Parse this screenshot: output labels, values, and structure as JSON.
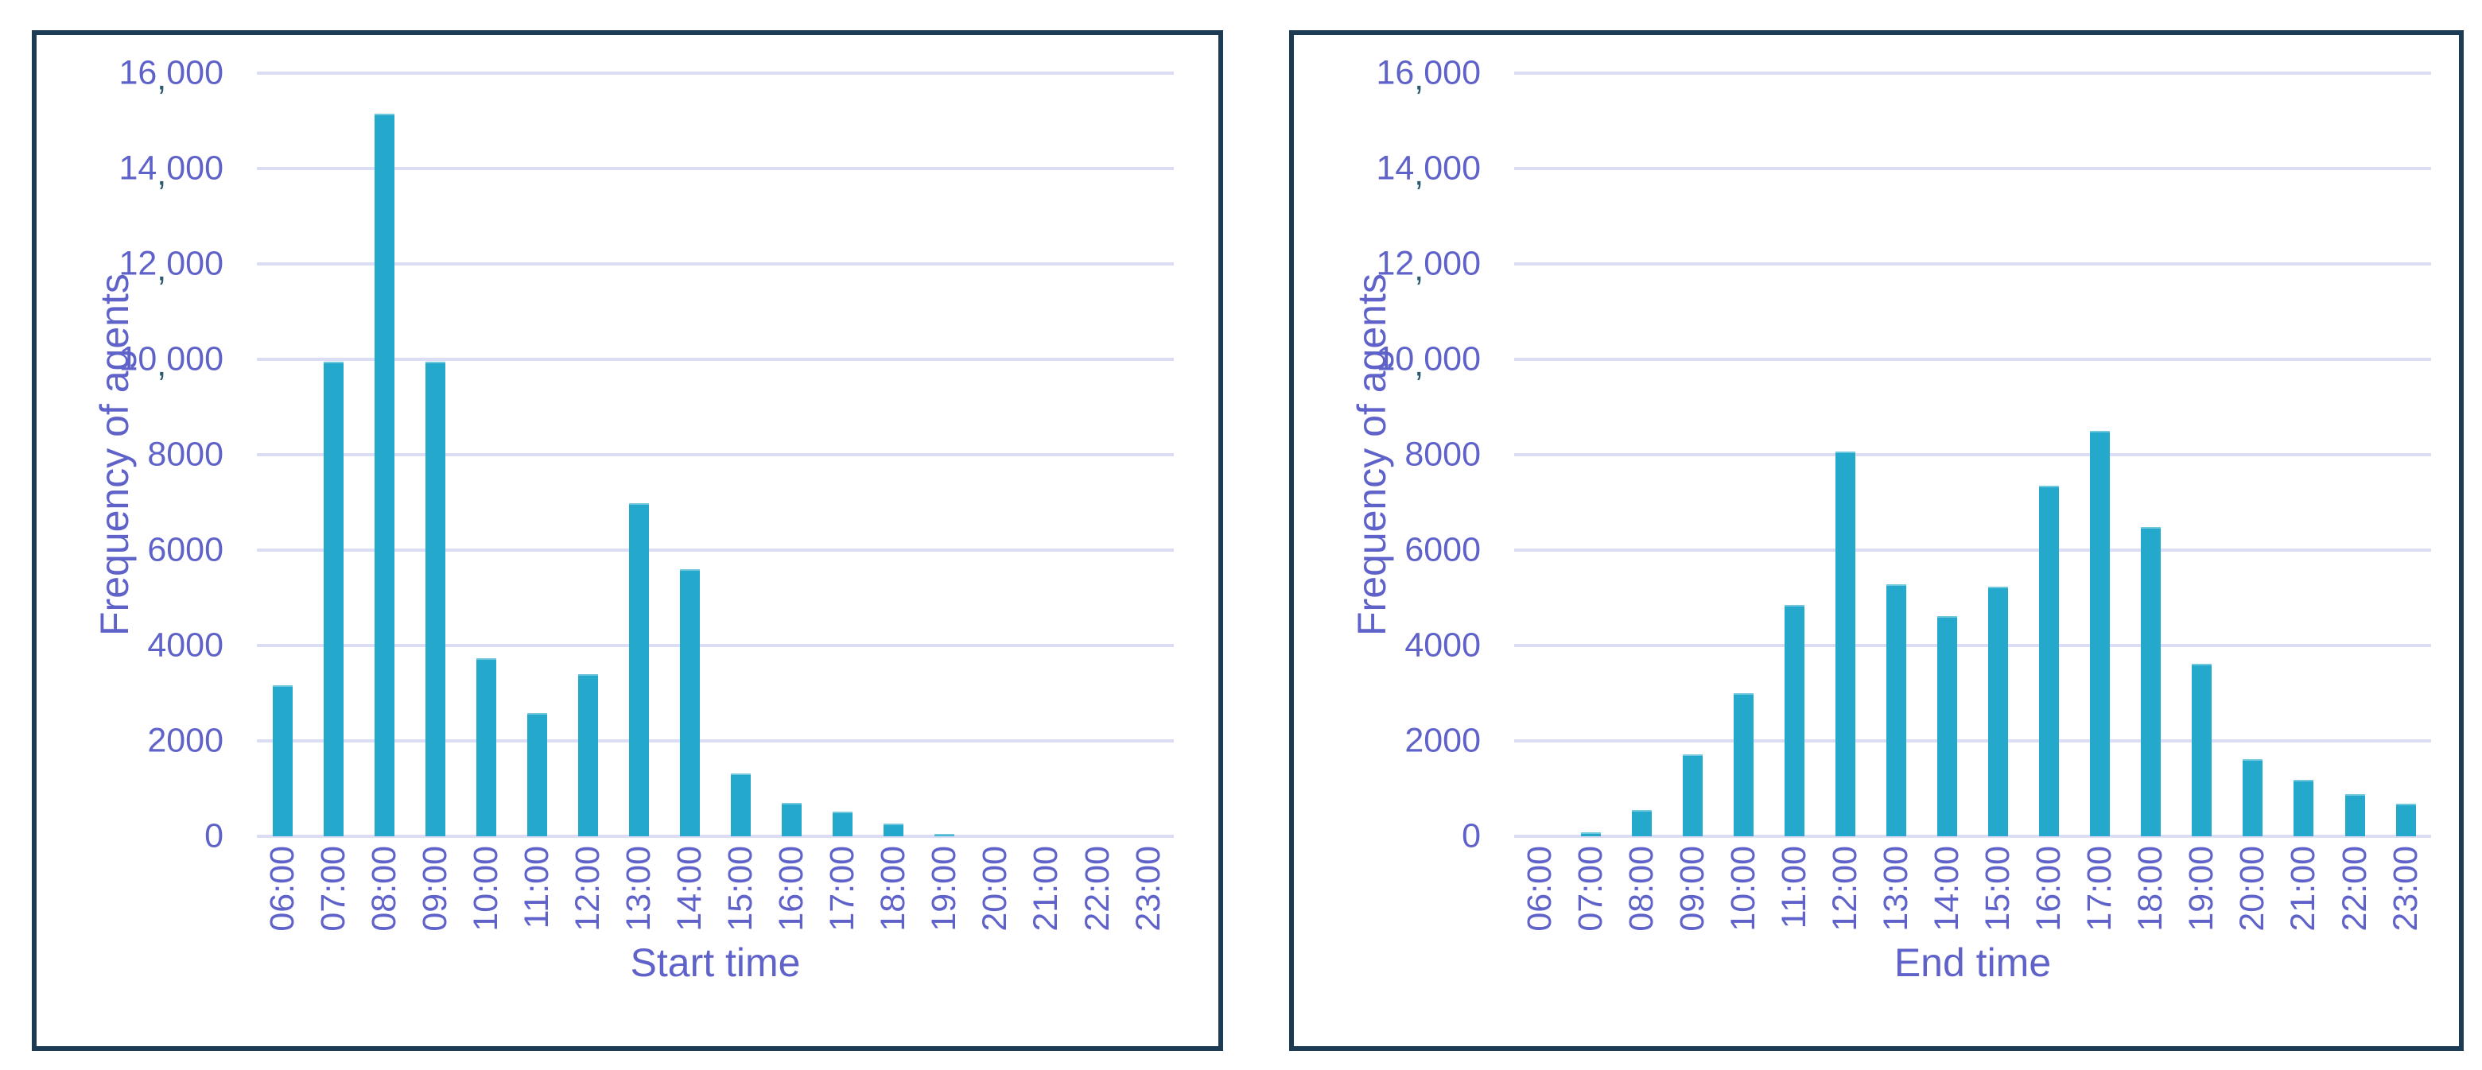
{
  "figure": {
    "background": "#ffffff",
    "panel_border_color": "#1d3b53",
    "bar_color": "#24a9cd",
    "label_color": "#5f63c9",
    "comma_color": "#2b5a6e",
    "gridline_color": "#dcdcf5"
  },
  "y_axis": {
    "title": "Frequency of agents",
    "min": 0,
    "max": 16000,
    "step": 2000,
    "tick_labels": [
      "0",
      "2000",
      "4000",
      "6000",
      "8000",
      "10,000",
      "12,000",
      "14,000",
      "16,000"
    ]
  },
  "chart_data": [
    {
      "type": "bar",
      "title": "",
      "xlabel": "Start time",
      "ylabel": "Frequency of agents",
      "ylim": [
        0,
        16000
      ],
      "grid": true,
      "legend": false,
      "categories": [
        "06:00",
        "07:00",
        "08:00",
        "09:00",
        "10:00",
        "11:00",
        "12:00",
        "13:00",
        "14:00",
        "15:00",
        "16:00",
        "17:00",
        "18:00",
        "19:00",
        "20:00",
        "21:00",
        "22:00",
        "23:00"
      ],
      "values": [
        3170,
        9950,
        15150,
        9950,
        3730,
        2580,
        3400,
        6980,
        5600,
        1320,
        700,
        520,
        270,
        50,
        0,
        0,
        0,
        0
      ]
    },
    {
      "type": "bar",
      "title": "",
      "xlabel": "End time",
      "ylabel": "Frequency of agents",
      "ylim": [
        0,
        16000
      ],
      "grid": true,
      "legend": false,
      "categories": [
        "06:00",
        "07:00",
        "08:00",
        "09:00",
        "10:00",
        "11:00",
        "12:00",
        "13:00",
        "14:00",
        "15:00",
        "16:00",
        "17:00",
        "18:00",
        "19:00",
        "20:00",
        "21:00",
        "22:00",
        "23:00"
      ],
      "values": [
        0,
        80,
        550,
        1720,
        3000,
        4850,
        8070,
        5290,
        4610,
        5240,
        7350,
        8500,
        6490,
        3610,
        1610,
        1180,
        880,
        680
      ]
    }
  ]
}
